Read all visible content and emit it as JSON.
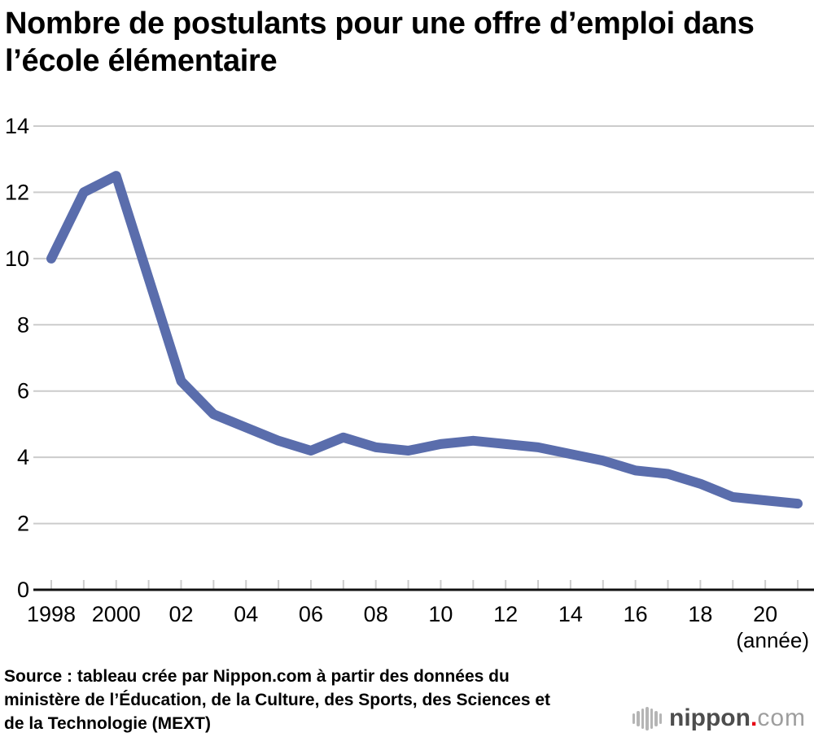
{
  "page": {
    "title_lines": [
      "Nombre de postulants pour une offre d’emploi dans",
      "l’école élémentaire"
    ],
    "source_lines": [
      "Source : tableau crée par Nippon.com à partir des données du",
      "ministère de l’Éducation, de la Culture, des Sports, des Sciences et",
      "de la Technologie (MEXT)"
    ],
    "logo": {
      "word": "nippon",
      "dot": ".",
      "tld": "com"
    }
  },
  "chart_data": {
    "type": "line",
    "title": "Nombre de postulants pour une offre d’emploi dans l’école élémentaire",
    "x_unit_label": "(année)",
    "x": [
      1998,
      1999,
      2000,
      2001,
      2002,
      2003,
      2004,
      2005,
      2006,
      2007,
      2008,
      2009,
      2010,
      2011,
      2012,
      2013,
      2014,
      2015,
      2016,
      2017,
      2018,
      2019,
      2020,
      2021
    ],
    "values": [
      10.0,
      12.0,
      12.5,
      9.4,
      6.3,
      5.3,
      4.9,
      4.5,
      4.2,
      4.6,
      4.3,
      4.2,
      4.4,
      4.5,
      4.4,
      4.3,
      4.1,
      3.9,
      3.6,
      3.5,
      3.2,
      2.8,
      2.7,
      2.6
    ],
    "ylim": [
      0,
      14
    ],
    "yticks": [
      0,
      2,
      4,
      6,
      8,
      10,
      12,
      14
    ],
    "xtick_labels": [
      {
        "x": 1998,
        "label": "1998"
      },
      {
        "x": 2000,
        "label": "2000"
      },
      {
        "x": 2002,
        "label": "02"
      },
      {
        "x": 2004,
        "label": "04"
      },
      {
        "x": 2006,
        "label": "06"
      },
      {
        "x": 2008,
        "label": "08"
      },
      {
        "x": 2010,
        "label": "10"
      },
      {
        "x": 2012,
        "label": "12"
      },
      {
        "x": 2014,
        "label": "14"
      },
      {
        "x": 2016,
        "label": "16"
      },
      {
        "x": 2018,
        "label": "18"
      },
      {
        "x": 2020,
        "label": "20"
      }
    ],
    "grid": true,
    "legend": "none",
    "line_color": "#5a6dac",
    "grid_color": "#cccccc",
    "axis_color": "#111111",
    "label_color": "#000000",
    "logo_colors": {
      "word": "#4d4d4d",
      "dot": "#e60012",
      "tld": "#9e9e9e",
      "bars": "#b5b5b5"
    }
  }
}
